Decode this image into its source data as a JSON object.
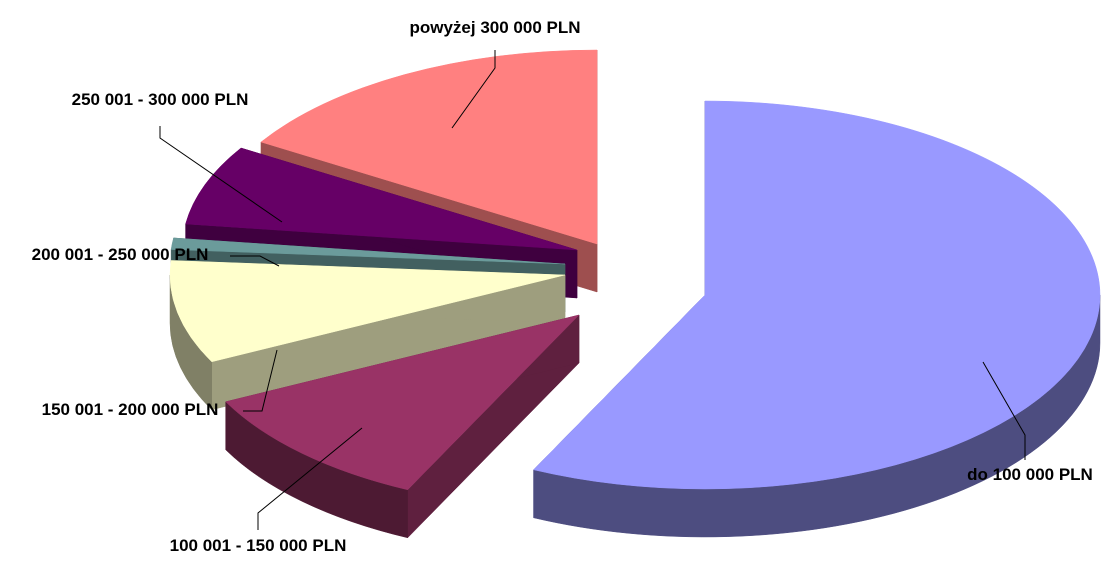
{
  "chart_data": {
    "type": "pie",
    "variant": "3d-exploded",
    "title": "",
    "legend": "none",
    "slices": [
      {
        "label": "do 100 000 PLN",
        "value": 60,
        "color": "#9999ff"
      },
      {
        "label": "100 001 - 150 000 PLN",
        "value": 11,
        "color": "#993366"
      },
      {
        "label": "150 001 - 200 000 PLN",
        "value": 9,
        "color": "#ffffcc"
      },
      {
        "label": "200 001 - 250 000 PLN",
        "value": 1,
        "color": "#6b9b9b"
      },
      {
        "label": "250 001 - 300 000 PLN",
        "value": 7,
        "color": "#660066"
      },
      {
        "label": "powyżej 300 000 PLN",
        "value": 17,
        "color": "#ff8080"
      }
    ]
  }
}
